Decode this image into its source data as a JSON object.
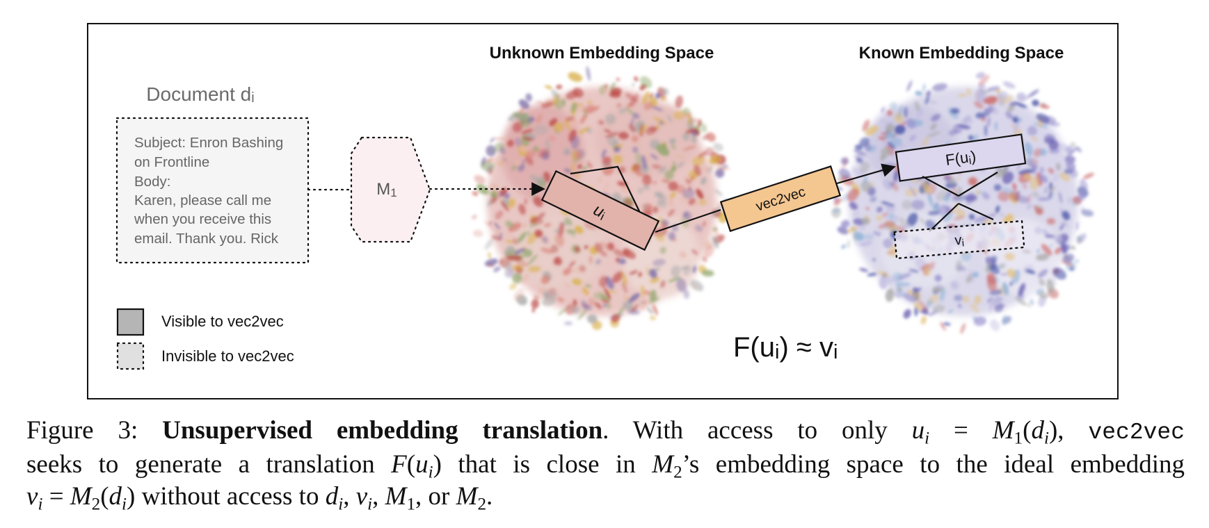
{
  "figure": {
    "titles": {
      "unknown_space": "Unknown Embedding Space",
      "known_space": "Known Embedding Space"
    },
    "document": {
      "title_main": "Document d",
      "title_sub": "i",
      "lines": [
        "Subject: Enron Bashing",
        "on Frontline",
        "Body:",
        "Karen, please call me",
        "when you receive this",
        "email. Thank you. Rick"
      ]
    },
    "encoder": {
      "main": "M",
      "sub": "1"
    },
    "u_box": {
      "main": "u",
      "sub": "i"
    },
    "translator": {
      "label": "vec2vec"
    },
    "f_box": {
      "main": "F(u",
      "sub": "i",
      "end": ")"
    },
    "v_box": {
      "main": "v",
      "sub": "i"
    },
    "equation": {
      "f": "F(u",
      "sub1": "i",
      "mid": ") ≈ v",
      "sub2": "i"
    },
    "legend": {
      "visible": "Visible to vec2vec",
      "invisible": "Invisible to vec2vec"
    },
    "colors": {
      "u_fill": "#e2b3ab",
      "translator_fill": "#f4c690",
      "f_fill": "#dcd6ee",
      "encoder_fill": "#fbeff1",
      "visible_fill": "#b5b5b5",
      "invisible_fill": "#e0e0e0",
      "doc_fill": "#f5f5f5"
    }
  },
  "caption": {
    "fig_label": "Figure 3:",
    "bold_title": "Unsupervised embedding translation",
    "l1_a": ". With access to only ",
    "l1_u": "u",
    "l1_i": "i",
    "l1_eq": " = ",
    "l1_M": "M",
    "l1_1": "1",
    "l1_paren_open": "(",
    "l1_d": "d",
    "l1_paren_close": "),",
    "l1_code": "vec2vec",
    "l2_a": "seeks to generate a translation ",
    "l2_F": "F",
    "l2_b": "(",
    "l2_c": ") that is close in ",
    "l2_M": "M",
    "l2_2": "2",
    "l2_d": "’s embedding space to the ideal embedding",
    "l3_v": "v",
    "l3_eq": " = ",
    "l3_M": "M",
    "l3_2": "2",
    "l3_b": ") without access to ",
    "l3_comma": ", ",
    "l3_or": ", or ",
    "l3_end": "."
  }
}
